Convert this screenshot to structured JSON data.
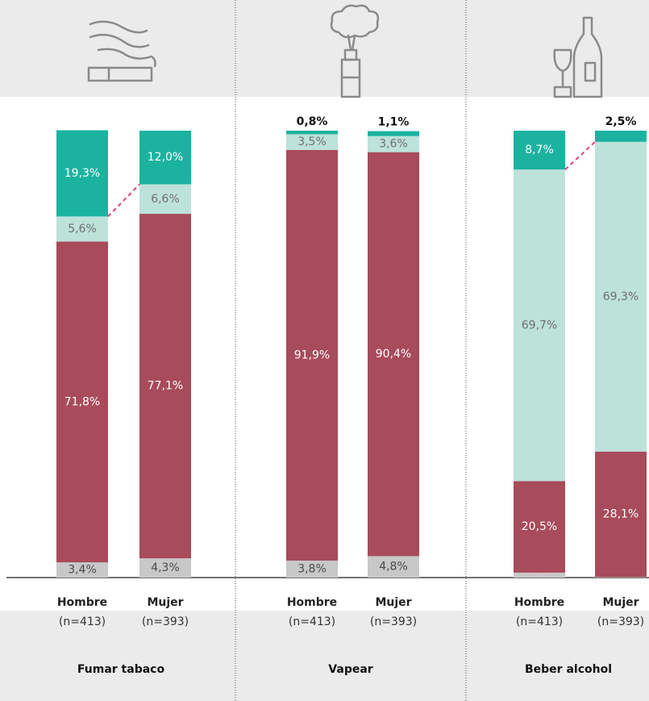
{
  "chart_data": [
    {
      "type": "bar",
      "stacked": true,
      "title": "Fumar tabaco",
      "categories": [
        "Hombre",
        "Mujer"
      ],
      "sample_sizes": [
        "(n=413)",
        "(n=393)"
      ],
      "ylim": [
        0,
        100
      ],
      "connector": true,
      "series": [
        {
          "color": "#c8c8c8",
          "values": [
            3.4,
            4.3
          ],
          "value_labels": [
            "3,4%",
            "4,3%"
          ]
        },
        {
          "color": "#a84b5a",
          "values": [
            71.8,
            77.1
          ],
          "value_labels": [
            "71,8%",
            "77,1%"
          ]
        },
        {
          "color": "#bde2da",
          "values": [
            5.6,
            6.6
          ],
          "value_labels": [
            "5,6%",
            "6,6%"
          ]
        },
        {
          "color": "#1bb3a0",
          "values": [
            19.3,
            12.0
          ],
          "value_labels": [
            "19,3%",
            "12,0%"
          ]
        }
      ]
    },
    {
      "type": "bar",
      "stacked": true,
      "title": "Vapear",
      "categories": [
        "Hombre",
        "Mujer"
      ],
      "sample_sizes": [
        "(n=413)",
        "(n=393)"
      ],
      "ylim": [
        0,
        100
      ],
      "connector": false,
      "series": [
        {
          "color": "#c8c8c8",
          "values": [
            3.8,
            4.8
          ],
          "value_labels": [
            "3,8%",
            "4,8%"
          ]
        },
        {
          "color": "#a84b5a",
          "values": [
            91.9,
            90.4
          ],
          "value_labels": [
            "91,9%",
            "90,4%"
          ]
        },
        {
          "color": "#bde2da",
          "values": [
            3.5,
            3.6
          ],
          "value_labels": [
            "3,5%",
            "3,6%"
          ]
        },
        {
          "color": "#1bb3a0",
          "values": [
            0.8,
            1.1
          ],
          "value_labels": [
            "0,8%",
            "1,1%"
          ]
        }
      ]
    },
    {
      "type": "bar",
      "stacked": true,
      "title": "Beber alcohol",
      "categories": [
        "Hombre",
        "Mujer"
      ],
      "sample_sizes": [
        "(n=413)",
        "(n=393)"
      ],
      "ylim": [
        0,
        100
      ],
      "connector": true,
      "series": [
        {
          "color": "#c8c8c8",
          "values": [
            1.1,
            0.1
          ],
          "value_labels": [
            "1,1%",
            "0,1%"
          ]
        },
        {
          "color": "#a84b5a",
          "values": [
            20.5,
            28.1
          ],
          "value_labels": [
            "20,5%",
            "28,1%"
          ]
        },
        {
          "color": "#bde2da",
          "values": [
            69.7,
            69.3
          ],
          "value_labels": [
            "69,7%",
            "69,3%"
          ]
        },
        {
          "color": "#1bb3a0",
          "values": [
            8.7,
            2.5
          ],
          "value_labels": [
            "8,7%",
            "2,5%"
          ]
        }
      ]
    }
  ]
}
